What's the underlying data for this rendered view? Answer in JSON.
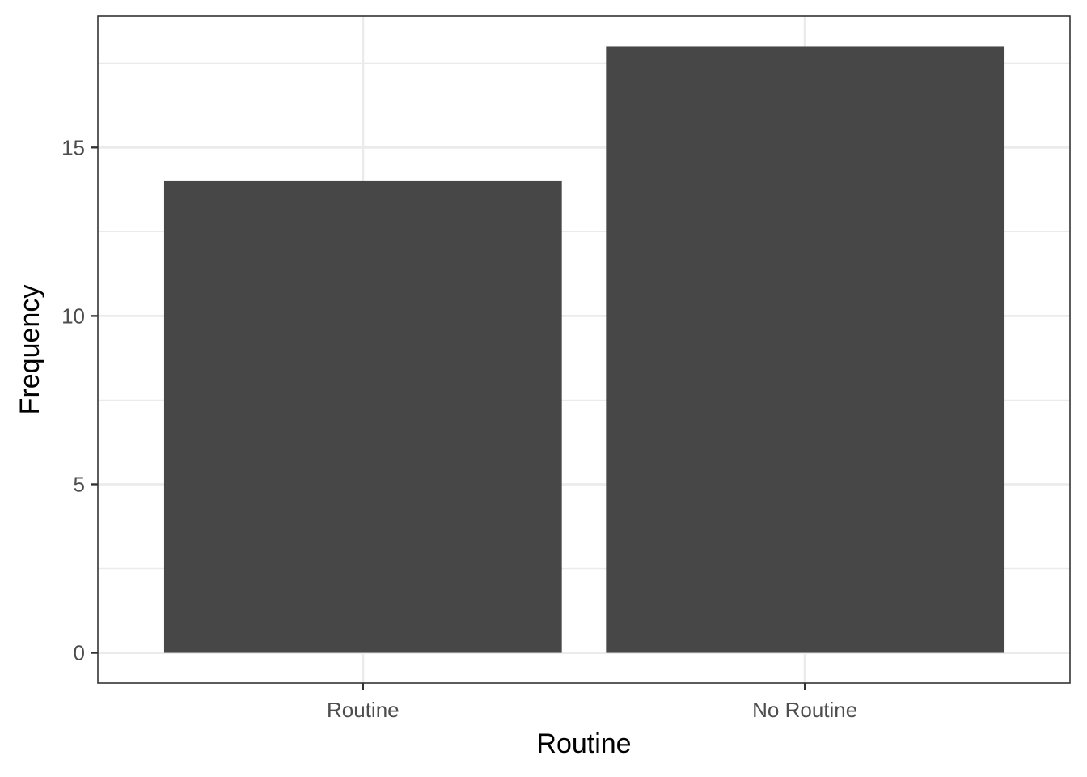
{
  "chart_data": {
    "type": "bar",
    "categories": [
      "Routine",
      "No Routine"
    ],
    "values": [
      14,
      18
    ],
    "title": "",
    "xlabel": "Routine",
    "ylabel": "Frequency",
    "ylim": [
      -0.9,
      18.9
    ],
    "yticks": [
      0,
      5,
      10,
      15
    ],
    "grid": true,
    "bar_color": "#474747",
    "panel_border_color": "#333333",
    "grid_color": "#ebebeb"
  }
}
